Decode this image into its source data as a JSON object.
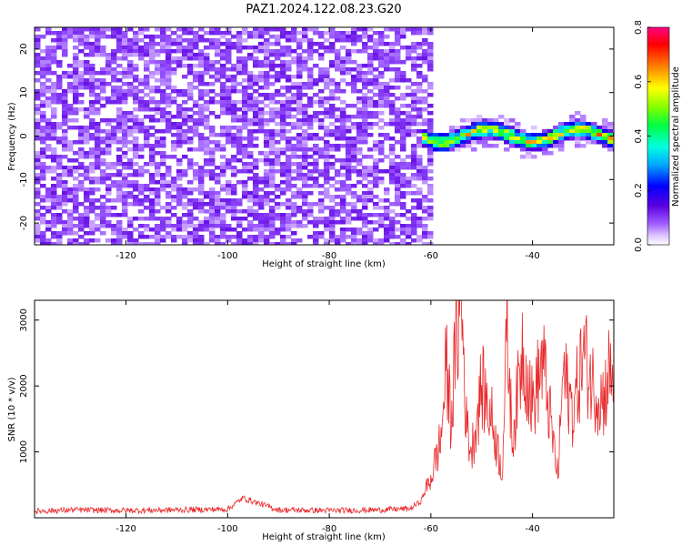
{
  "title": "PAZ1.2024.122.08.23.G20",
  "chart_data": [
    {
      "type": "heatmap",
      "xlabel": "Height of straight line (km)",
      "ylabel": "Frequency (Hz)",
      "xlim": [
        -138,
        -24
      ],
      "ylim": [
        -25,
        25
      ],
      "xticks": [
        -120,
        -100,
        -80,
        -60,
        -40
      ],
      "yticks": [
        -20,
        -10,
        0,
        10,
        20
      ],
      "colorbar": {
        "label": "Normalized spectral amplitude",
        "range": [
          0,
          0.8
        ],
        "ticks": [
          "0.0",
          "0.2",
          "0.4",
          "0.6",
          "0.8"
        ],
        "colors": [
          "#ffffff",
          "#e0c8ff",
          "#9b59ff",
          "#5b00e0",
          "#0000ff",
          "#00aaff",
          "#00ffe0",
          "#00ff40",
          "#80ff00",
          "#ffff00",
          "#ff8000",
          "#ff0000",
          "#ff0080"
        ]
      },
      "features": {
        "noise_region_km": [
          -138,
          -60
        ],
        "noise_level": 0.1,
        "signal_region_km": [
          -62,
          -24
        ],
        "signal_frequency_hz": [
          -1,
          2
        ],
        "signal_peak": 0.75
      }
    },
    {
      "type": "line",
      "xlabel": "Height of straight line (km)",
      "ylabel": "SNR (10 * v/v)",
      "xlim": [
        -138,
        -24
      ],
      "ylim": [
        0,
        3300
      ],
      "xticks": [
        -120,
        -100,
        -80,
        -60,
        -40
      ],
      "yticks": [
        1000,
        2000,
        3000
      ],
      "series": [
        {
          "color": "#e8282a",
          "x": [
            -138,
            -130,
            -120,
            -110,
            -100,
            -97,
            -90,
            -80,
            -70,
            -64,
            -62,
            -60,
            -58,
            -57,
            -56,
            -55,
            -54,
            -53,
            -52,
            -50,
            -48,
            -46,
            -45,
            -44,
            -43,
            -42,
            -40,
            -38,
            -36,
            -35,
            -34,
            -32,
            -30,
            -28,
            -26,
            -25,
            -24
          ],
          "y": [
            100,
            120,
            110,
            120,
            130,
            300,
            120,
            110,
            120,
            140,
            250,
            600,
            1200,
            2300,
            1500,
            2700,
            3300,
            1400,
            1000,
            2000,
            1500,
            700,
            2800,
            1200,
            1800,
            2600,
            1700,
            2400,
            1200,
            600,
            2200,
            1600,
            2500,
            2000,
            1800,
            2200,
            2100
          ]
        }
      ]
    }
  ]
}
